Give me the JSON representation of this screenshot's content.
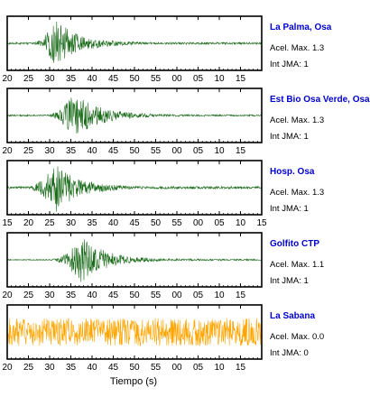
{
  "chart_data": {
    "type": "line",
    "xlabel": "Tiempo (s)",
    "ylabel": "",
    "colors": {
      "frame": "#000000",
      "name": "#0000cc"
    },
    "panels": [
      {
        "name": "La Palma, Osa",
        "acel_label": "Acel. Max. 1.3",
        "jma_label": "Int JMA: 1",
        "color": "#1a6b1a",
        "tick_labels": [
          "20",
          "25",
          "30",
          "35",
          "40",
          "45",
          "50",
          "55",
          "00",
          "05",
          "10",
          "15"
        ],
        "tick_start": 20,
        "onset_s": 25.5,
        "peak_s": 31.5,
        "amplitude": 0.9,
        "noise": 0.04
      },
      {
        "name": "Est Bio Osa Verde, Osa",
        "acel_label": "Acel. Max. 1.3",
        "jma_label": "Int JMA: 1",
        "color": "#1a6b1a",
        "tick_labels": [
          "20",
          "25",
          "30",
          "35",
          "40",
          "45",
          "50",
          "55",
          "00",
          "05",
          "10",
          "15"
        ],
        "tick_start": 20,
        "onset_s": 29,
        "peak_s": 36,
        "amplitude": 0.95,
        "noise": 0.03
      },
      {
        "name": "Hosp. Osa",
        "acel_label": "Acel. Max. 1.3",
        "jma_label": "Int JMA: 1",
        "color": "#1a6b1a",
        "tick_labels": [
          "15",
          "20",
          "25",
          "30",
          "35",
          "40",
          "45",
          "50",
          "55",
          "00",
          "05",
          "10",
          "15"
        ],
        "tick_start": 15,
        "onset_s": 19,
        "peak_s": 26.5,
        "amplitude": 0.95,
        "noise": 0.05
      },
      {
        "name": "Golfito CTP",
        "acel_label": "Acel. Max. 1.1",
        "jma_label": "Int JMA: 1",
        "color": "#1a6b1a",
        "tick_labels": [
          "20",
          "25",
          "30",
          "35",
          "40",
          "45",
          "50",
          "55",
          "00",
          "05",
          "10",
          "15"
        ],
        "tick_start": 20,
        "onset_s": 30,
        "peak_s": 37.5,
        "amplitude": 0.9,
        "noise": 0.02
      },
      {
        "name": "La Sabana",
        "acel_label": "Acel. Max. 0.0",
        "jma_label": "Int JMA: 0",
        "color": "#ffa500",
        "tick_labels": [
          "20",
          "25",
          "30",
          "35",
          "40",
          "45",
          "50",
          "55",
          "00",
          "05",
          "10",
          "15"
        ],
        "tick_start": 20,
        "onset_s": 0,
        "peak_s": 0,
        "amplitude": 0.55,
        "noise": 0.55
      }
    ],
    "x_span_s": 60
  }
}
